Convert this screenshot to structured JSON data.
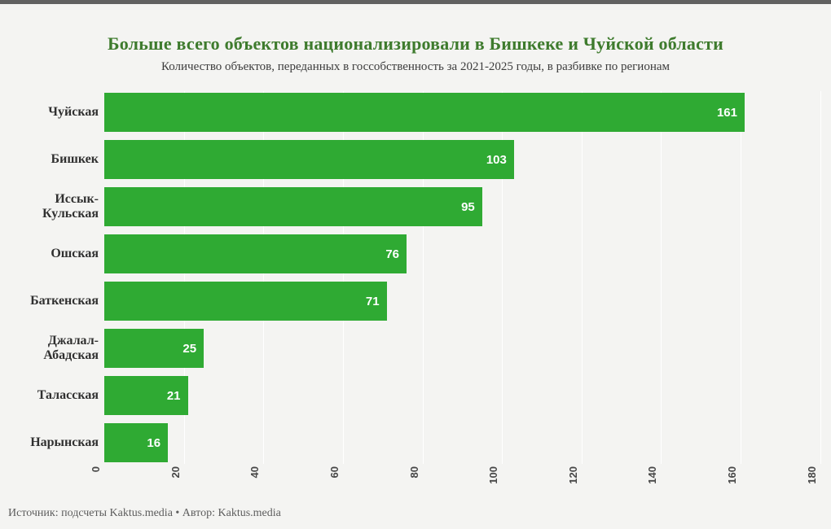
{
  "colors": {
    "background": "#f4f4f2",
    "top_border": "#616161",
    "title_green": "#3e7b2d",
    "bar_green": "#2faa33",
    "value_label_white": "#ffffff"
  },
  "chart_data": {
    "type": "bar",
    "orientation": "horizontal",
    "title": "Больше всего объектов национализировали в Бишкеке и Чуйской области",
    "subtitle": "Количество объектов, переданных в госсобственность за 2021-2025 годы, в разбивке по регионам",
    "categories": [
      "Чуйская",
      "Бишкек",
      "Иссык-Кульская",
      "Ошская",
      "Баткенская",
      "Джалал-Абадская",
      "Таласская",
      "Нарынская"
    ],
    "values": [
      161,
      103,
      95,
      76,
      71,
      25,
      21,
      16
    ],
    "xlabel": "",
    "ylabel": "",
    "xlim": [
      0,
      180
    ],
    "xticks": [
      0,
      20,
      40,
      60,
      80,
      100,
      120,
      140,
      160,
      180
    ],
    "grid": "vertical-light",
    "legend": "none",
    "bar_color": "#2faa33",
    "value_label_position": "inside-end"
  },
  "footer": {
    "text": "Источник: подсчеты Kaktus.media • Автор: Kaktus.media"
  }
}
